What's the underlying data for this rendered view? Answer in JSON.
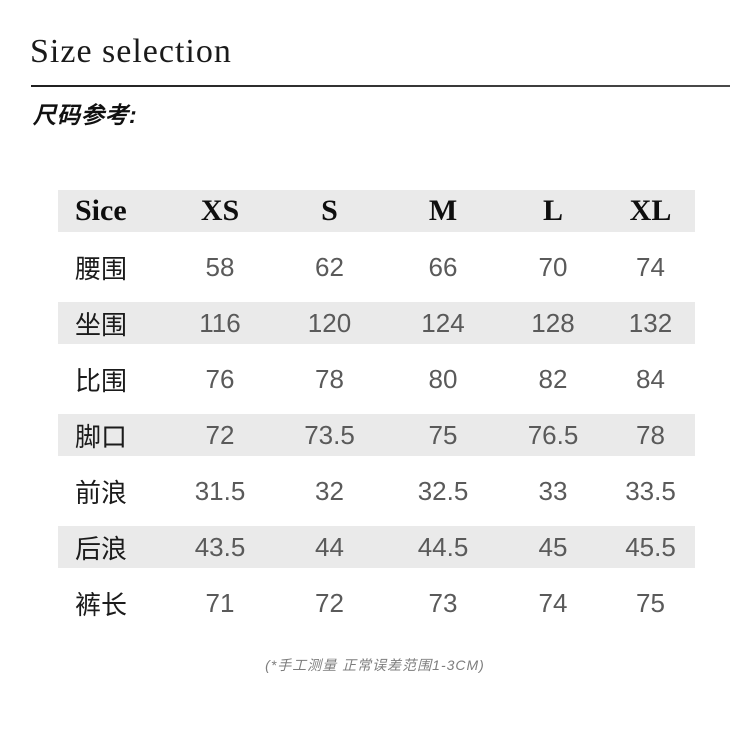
{
  "page": {
    "title": "Size selection",
    "subtitle": "尺码参考:",
    "footnote": "(*手工测量 正常误差范围1-3CM)"
  },
  "colors": {
    "row_shade": "#eaeaea",
    "title_text": "#1a1a1a",
    "label_text": "#1b1b1b",
    "value_text": "#5a5a5a",
    "footnote_text": "#7d7d7d"
  },
  "size_table": {
    "header": {
      "label": "Sice",
      "columns": [
        "XS",
        "S",
        "M",
        "L",
        "XL"
      ]
    },
    "rows": [
      {
        "label": "腰围",
        "values": [
          "58",
          "62",
          "66",
          "70",
          "74"
        ]
      },
      {
        "label": "坐围",
        "values": [
          "116",
          "120",
          "124",
          "128",
          "132"
        ]
      },
      {
        "label": "比围",
        "values": [
          "76",
          "78",
          "80",
          "82",
          "84"
        ]
      },
      {
        "label": "脚口",
        "values": [
          "72",
          "73.5",
          "75",
          "76.5",
          "78"
        ]
      },
      {
        "label": "前浪",
        "values": [
          "31.5",
          "32",
          "32.5",
          "33",
          "33.5"
        ]
      },
      {
        "label": "后浪",
        "values": [
          "43.5",
          "44",
          "44.5",
          "45",
          "45.5"
        ]
      },
      {
        "label": "裤长",
        "values": [
          "71",
          "72",
          "73",
          "74",
          "75"
        ]
      }
    ]
  }
}
